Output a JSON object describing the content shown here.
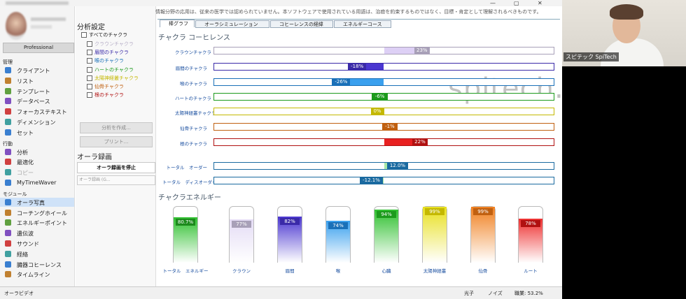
{
  "window": {
    "controls": [
      "—",
      "▢",
      "✕"
    ]
  },
  "sidebar": {
    "plan": "Professional",
    "sections": [
      {
        "title": "管理",
        "items": [
          "クライアント",
          "リスト",
          "テンプレート",
          "データベース",
          "フォーカステキスト",
          "ディメンション",
          "セット"
        ]
      },
      {
        "title": "行動",
        "items": [
          "分析",
          "最適化",
          "コピー",
          "MyTimeWaver"
        ]
      },
      {
        "title": "モジュール",
        "items": [
          "オーラ写真",
          "コーチングホイール",
          "エネルギーポイント",
          "遺伝波",
          "サウンド",
          "経絡",
          "臓器コヒーレンス",
          "タイムライン"
        ]
      }
    ]
  },
  "settings": {
    "title": "分析設定",
    "all": "すべてのチャクラ",
    "chakras": [
      "クラウンチャクラ",
      "眉間のチャクラ",
      "喉のチャクラ",
      "ハートのチャクラ",
      "太陽神経叢チャクラ",
      "仙骨チャクラ",
      "根のチャクラ"
    ],
    "buttons": [
      "分析を作成...",
      "プリント..."
    ],
    "recording_title": "オーラ録画",
    "stop": "オーラ録画を停止",
    "recording_field": "オーラ録画 (G..."
  },
  "notice": "情報分野の応用は、従来の医学では認められていません。本ソフトウェアで使用されている用語は、治癒を約束するものではなく、目標・肯定として理解されるべきものです。",
  "tabs": [
    "棒グラフ",
    "オーラシミュレーション",
    "コヒーレンスの経緯",
    "エネルギーコース"
  ],
  "coherence": {
    "title": "チャクラ コーヒレンス",
    "rows": [
      {
        "label": "クラウンチャクラ",
        "value": 23,
        "value_label": "23%",
        "color": "#ddd0f5",
        "tag": "#a8a0b8"
      },
      {
        "label": "眉間のチャクラ",
        "value": -18,
        "value_label": "-18%",
        "color": "#4a36d0",
        "tag": "#3a2aa8"
      },
      {
        "label": "喉のチャクラ",
        "value": -26,
        "value_label": "-26%",
        "color": "#3aa0ee",
        "tag": "#1a70b8"
      },
      {
        "label": "ハートのチャクラ",
        "value": -6,
        "value_label": "-6%",
        "color": "#30c030",
        "tag": "#1c9a1c"
      },
      {
        "label": "太陽神経叢チャクラ",
        "value": 0,
        "value_label": "0%",
        "color": "#e0d820",
        "tag": "#c4b800"
      },
      {
        "label": "仙骨チャクラ",
        "value": -1,
        "value_label": "-1%",
        "color": "#e88020",
        "tag": "#c06010"
      },
      {
        "label": "根のチャクラ",
        "value": 22,
        "value_label": "22%",
        "color": "#e82020",
        "tag": "#b01010"
      }
    ],
    "totals": [
      {
        "label": "トータル　オーダー",
        "value": 12.0,
        "value_label": "12.0%",
        "color": "#a8e8a8",
        "tag": "#1a6aa0"
      },
      {
        "label": "トータル　ディスオーダー",
        "value": -12.1,
        "value_label": "-12.1%",
        "color": "#a8e8a8",
        "tag": "#1a6aa0"
      }
    ]
  },
  "energy": {
    "title": "チャクラエネルギー",
    "tubes": [
      {
        "label": "トータル　エネルギー",
        "value": 80.7,
        "value_label": "80.7%",
        "color": "#30c030",
        "tag": "#1c8a1c"
      },
      {
        "label": "クラウン",
        "value": 77,
        "value_label": "77%",
        "color": "#e4dcf5",
        "tag": "#a8a0b8"
      },
      {
        "label": "眉間",
        "value": 82,
        "value_label": "82%",
        "color": "#4a36d0",
        "tag": "#3a2aa8"
      },
      {
        "label": "喉",
        "value": 74,
        "value_label": "74%",
        "color": "#3aa0ee",
        "tag": "#1a70b8"
      },
      {
        "label": "心臓",
        "value": 94,
        "value_label": "94%",
        "color": "#30c030",
        "tag": "#1c9a1c"
      },
      {
        "label": "太陽神経叢",
        "value": 99,
        "value_label": "99%",
        "color": "#e8e020",
        "tag": "#c4b800"
      },
      {
        "label": "仙骨",
        "value": 99,
        "value_label": "99%",
        "color": "#f08020",
        "tag": "#c06010"
      },
      {
        "label": "ルート",
        "value": 78,
        "value_label": "78%",
        "color": "#ee3030",
        "tag": "#b01010"
      }
    ]
  },
  "status": {
    "left": "オーラビデオ",
    "photon": "光子",
    "noise": "ノイズ",
    "job": "職業: 53.2%"
  },
  "video": {
    "caption": "スピテック SpiTech"
  },
  "watermark": "spitech.jp"
}
